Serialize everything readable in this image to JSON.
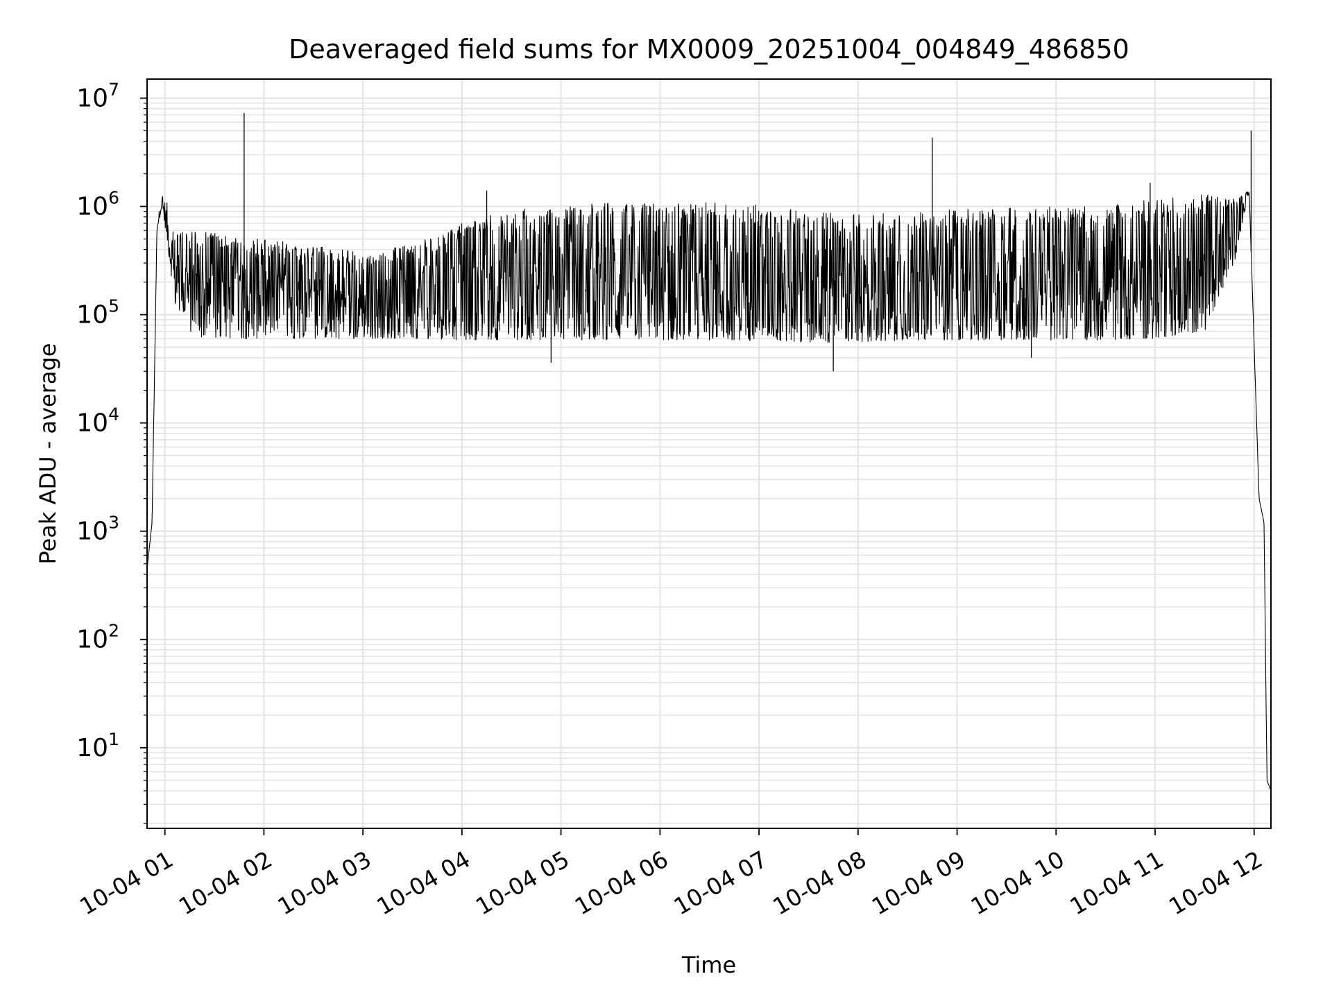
{
  "chart_data": {
    "type": "line",
    "title": "Deaveraged field sums for MX0009_20251004_004849_486850",
    "xlabel": "Time",
    "ylabel": "Peak ADU - average",
    "yscale": "log",
    "grid": true,
    "ylim": [
      1.8,
      15000000
    ],
    "xlim_hours": [
      0.82,
      12.17
    ],
    "x_tick_labels": [
      "10-04 01",
      "10-04 02",
      "10-04 03",
      "10-04 04",
      "10-04 05",
      "10-04 06",
      "10-04 07",
      "10-04 08",
      "10-04 09",
      "10-04 10",
      "10-04 11",
      "10-04 12"
    ],
    "x_tick_hours": [
      1,
      2,
      3,
      4,
      5,
      6,
      7,
      8,
      9,
      10,
      11,
      12
    ],
    "y_tick_values": [
      10,
      100,
      1000,
      10000,
      100000,
      1000000,
      10000000
    ],
    "y_tick_exponents": [
      "1",
      "2",
      "3",
      "4",
      "5",
      "6",
      "7"
    ],
    "y_tick_base": "10",
    "series": [
      {
        "name": "Peak ADU - average",
        "color": "#000000",
        "envelope": {
          "hours": [
            0.82,
            0.87,
            0.92,
            0.97,
            1.02,
            1.1,
            1.3,
            1.6,
            2.0,
            2.5,
            3.0,
            3.5,
            4.0,
            4.5,
            5.0,
            5.5,
            6.0,
            6.5,
            7.0,
            7.5,
            8.0,
            8.5,
            9.0,
            9.5,
            10.0,
            10.5,
            11.0,
            11.5,
            11.8,
            11.95,
            12.05,
            12.1,
            12.13,
            12.17
          ],
          "high": [
            450,
            1200,
            700000,
            1300000,
            1100000,
            600000,
            600000,
            550000,
            500000,
            450000,
            380000,
            450000,
            700000,
            950000,
            1000000,
            1100000,
            1100000,
            1100000,
            1050000,
            900000,
            850000,
            900000,
            950000,
            1000000,
            1000000,
            1000000,
            1200000,
            1300000,
            1200000,
            1400000,
            2000,
            1200,
            5,
            4
          ],
          "low": [
            450,
            1200,
            600000,
            1000000,
            500000,
            120000,
            60000,
            60000,
            60000,
            60000,
            60000,
            60000,
            58000,
            58000,
            58000,
            58000,
            58000,
            58000,
            58000,
            55000,
            55000,
            58000,
            58000,
            58000,
            58000,
            58000,
            60000,
            70000,
            300000,
            1400000,
            2000,
            1200,
            5,
            4
          ]
        },
        "spikes": [
          {
            "hour": 1.8,
            "value": 7300000
          },
          {
            "hour": 8.75,
            "value": 4300000
          },
          {
            "hour": 11.97,
            "value": 5000000
          },
          {
            "hour": 4.25,
            "value": 1400000
          },
          {
            "hour": 10.95,
            "value": 1650000
          },
          {
            "hour": 7.75,
            "value": 30000
          },
          {
            "hour": 4.9,
            "value": 36000
          },
          {
            "hour": 9.75,
            "value": 40000
          }
        ]
      }
    ]
  }
}
